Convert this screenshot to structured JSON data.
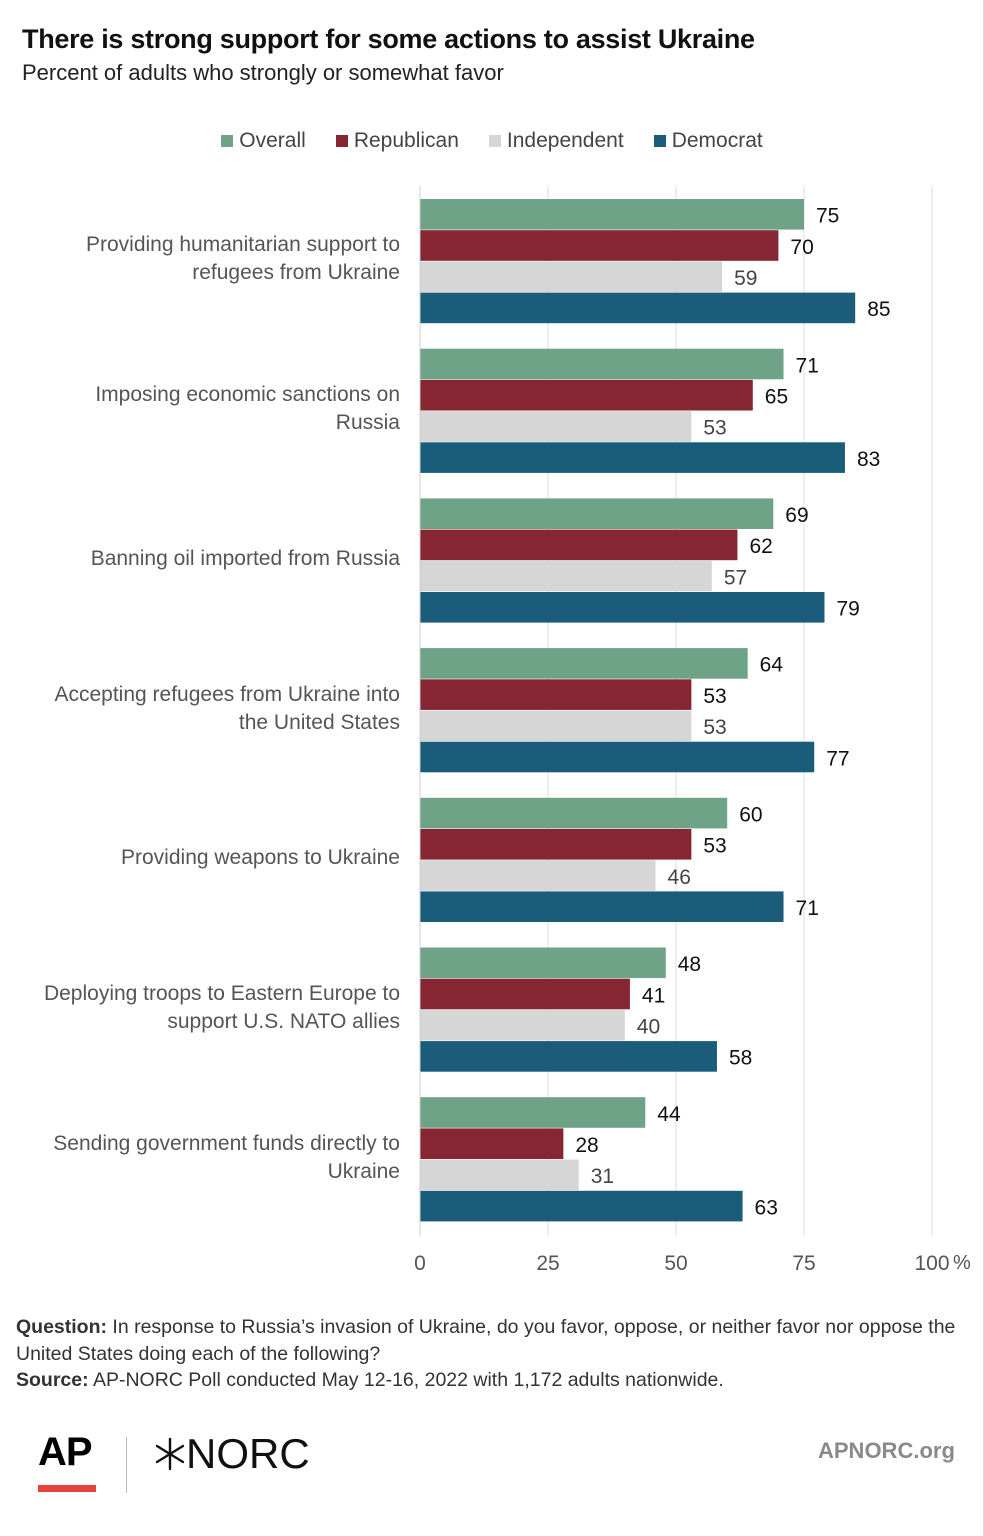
{
  "title": "There is strong support for some actions to assist Ukraine",
  "subtitle": "Percent of adults who strongly or somewhat favor",
  "colors": {
    "overall": "#6fa387",
    "republican": "#862633",
    "independent": "#d6d6d6",
    "democrat": "#1a5c7a"
  },
  "chart_data": {
    "type": "bar",
    "orientation": "horizontal",
    "categories": [
      "Providing humanitarian support to refugees from Ukraine",
      "Imposing economic sanctions on Russia",
      "Banning oil imported from Russia",
      "Accepting refugees from Ukraine into the United States",
      "Providing weapons to Ukraine",
      "Deploying troops to Eastern Europe to support U.S. NATO allies",
      "Sending government funds directly to Ukraine"
    ],
    "series": [
      {
        "name": "Overall",
        "color": "#6fa387",
        "values": [
          75,
          71,
          69,
          64,
          60,
          48,
          44
        ]
      },
      {
        "name": "Republican",
        "color": "#862633",
        "values": [
          70,
          65,
          62,
          53,
          53,
          41,
          28
        ]
      },
      {
        "name": "Independent",
        "color": "#d6d6d6",
        "values": [
          59,
          53,
          57,
          53,
          46,
          40,
          31
        ]
      },
      {
        "name": "Democrat",
        "color": "#1a5c7a",
        "values": [
          85,
          83,
          79,
          77,
          71,
          58,
          63
        ]
      }
    ],
    "xlim": [
      0,
      100
    ],
    "x_ticks": [
      "0",
      "25",
      "50",
      "75",
      "100"
    ],
    "x_unit": "%",
    "grid": true,
    "legend_position": "top"
  },
  "category_lines": [
    [
      "Providing humanitarian support to",
      "refugees from Ukraine"
    ],
    [
      "Imposing economic sanctions on",
      "Russia"
    ],
    [
      "Banning oil imported from Russia"
    ],
    [
      "Accepting refugees from Ukraine into",
      "the United States"
    ],
    [
      "Providing weapons to Ukraine"
    ],
    [
      "Deploying troops to Eastern Europe to",
      "support U.S. NATO allies"
    ],
    [
      "Sending government funds directly to",
      "Ukraine"
    ]
  ],
  "footnote": {
    "question_label": "Question:",
    "question_text": " In response to Russia’s invasion of Ukraine, do you favor, oppose, or neither favor nor oppose the United States doing each of the following?",
    "source_label": "Source:",
    "source_text": " AP-NORC Poll conducted May 12-16, 2022 with 1,172 adults nationwide."
  },
  "branding": {
    "ap": "AP",
    "norc": "NORC",
    "site": "APNORC.org"
  }
}
